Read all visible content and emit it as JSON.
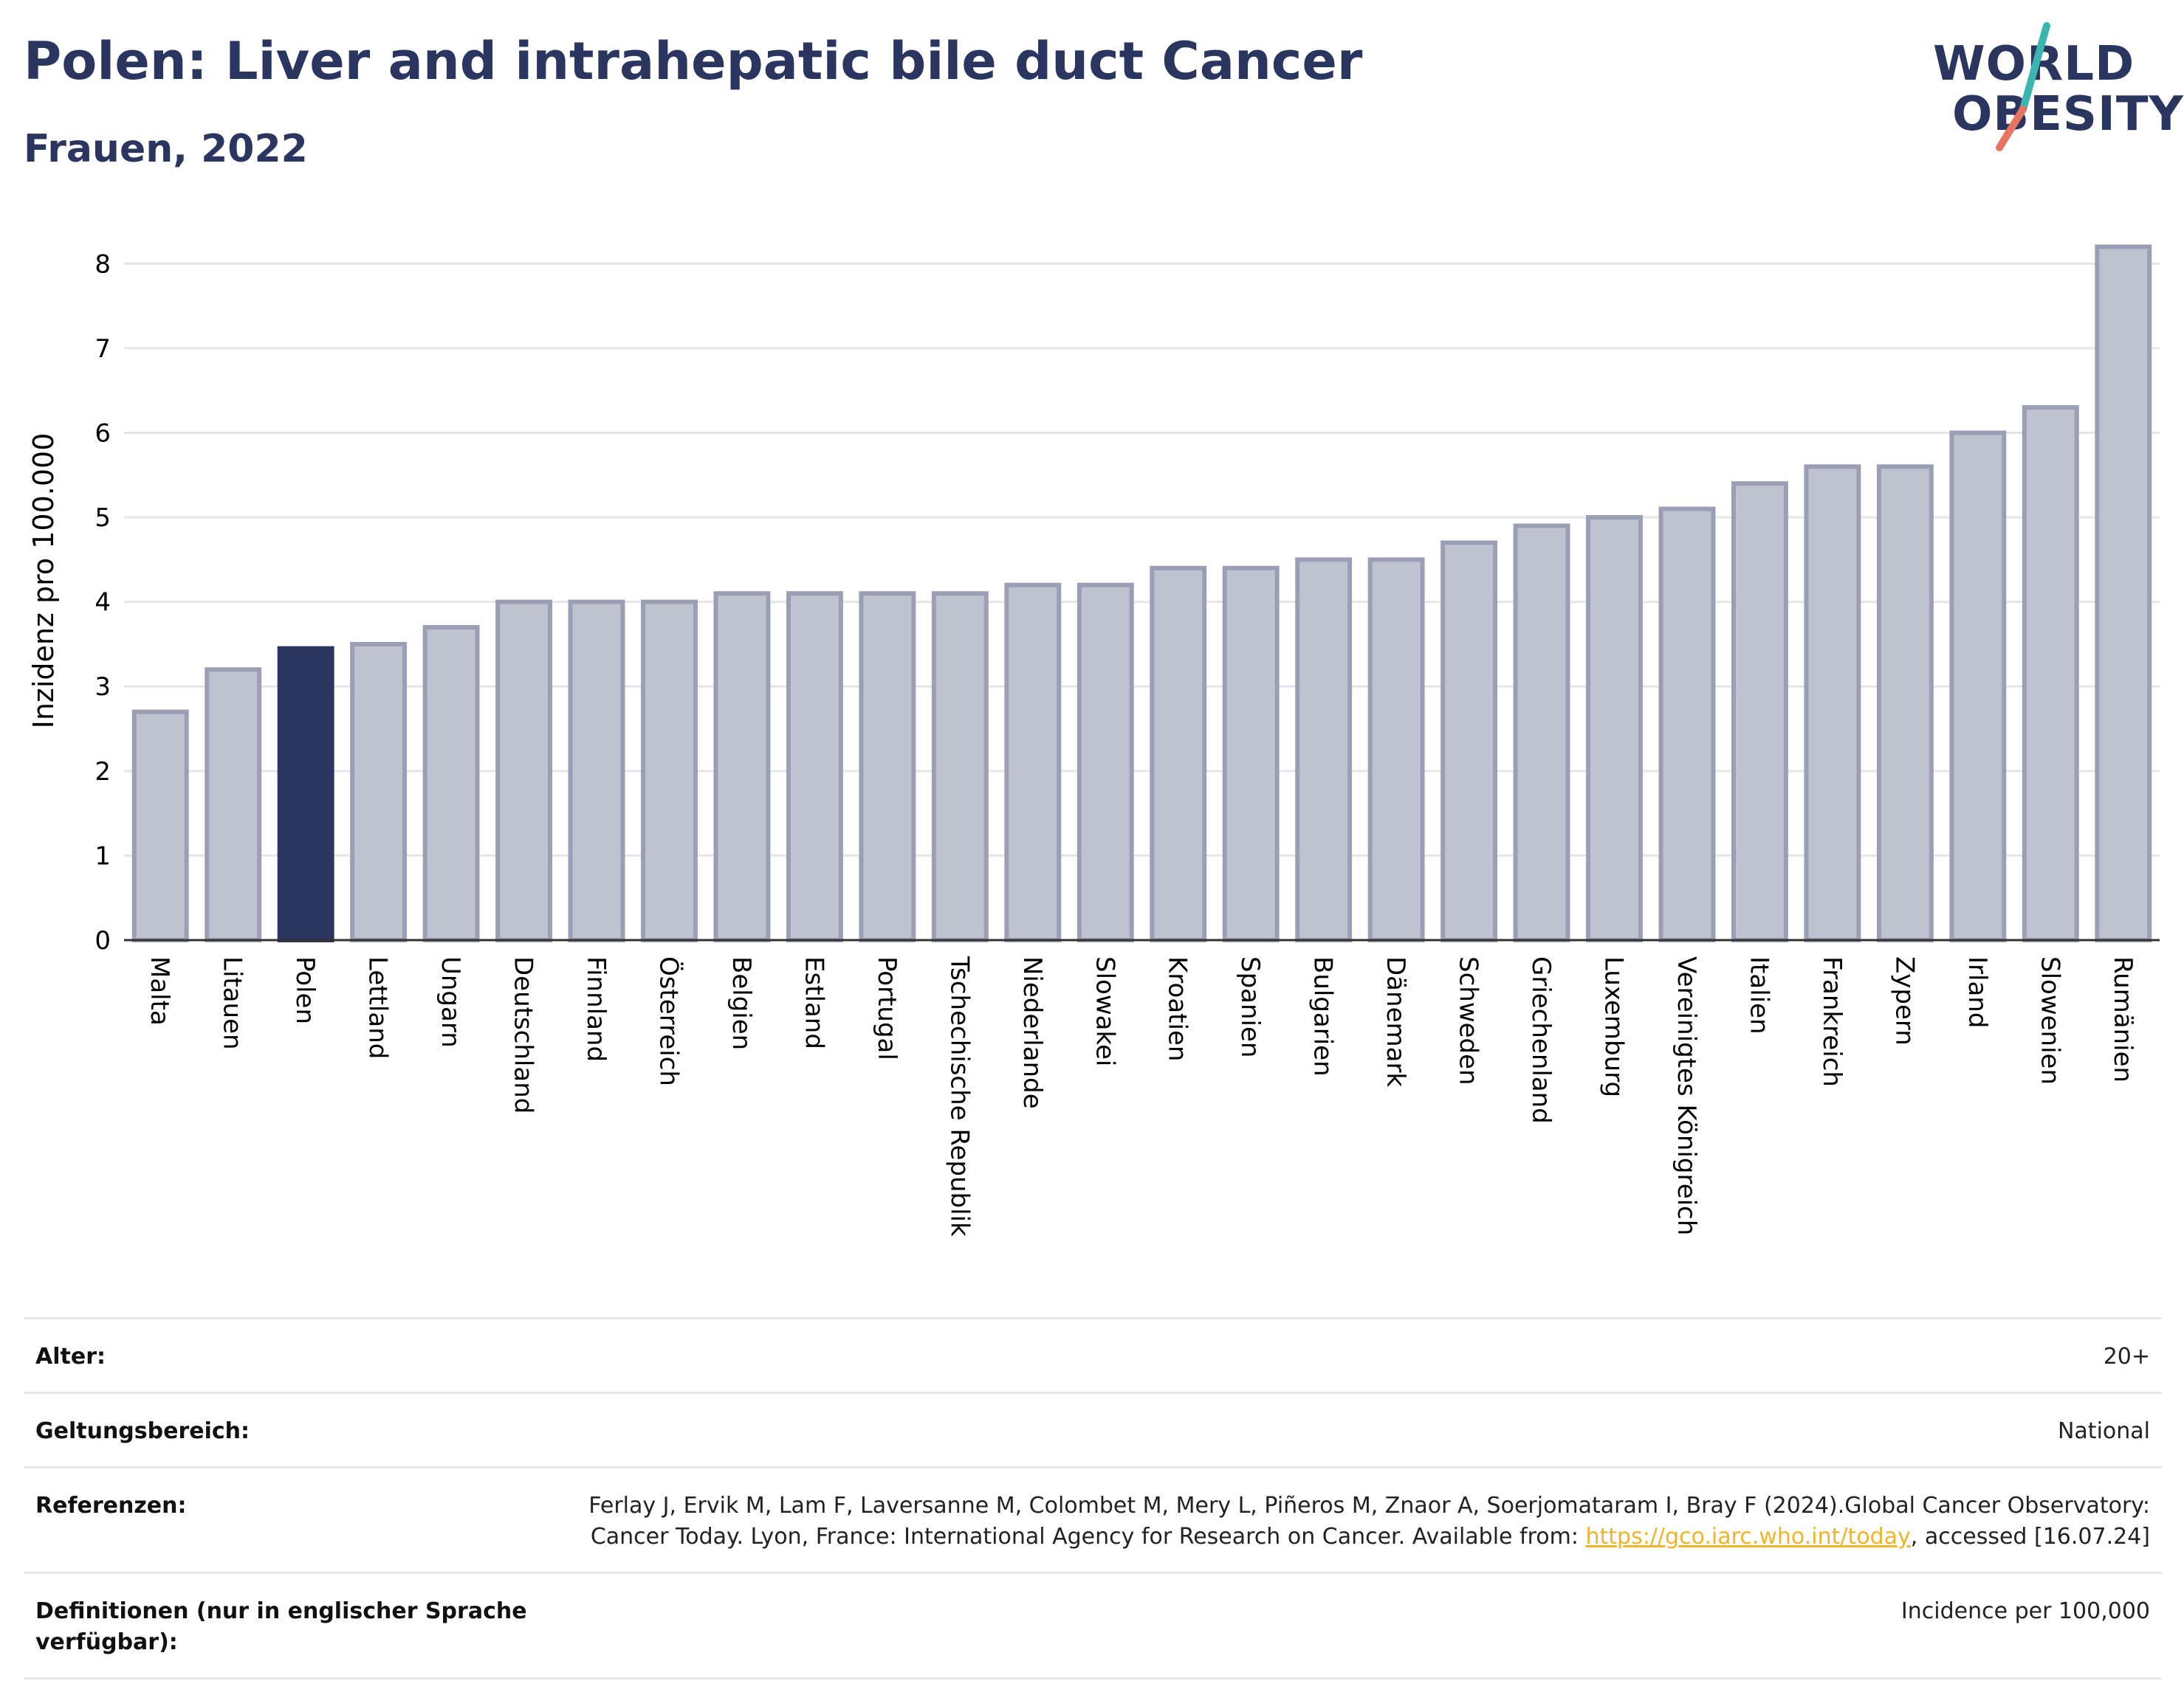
{
  "header": {
    "title": "Polen: Liver and intrahepatic bile duct Cancer",
    "subtitle": "Frauen, 2022"
  },
  "logo": {
    "line1": "WORLD",
    "line2": "OBESITY",
    "colors": {
      "text": "#2a3660",
      "slash_top": "#3ab5b0",
      "slash_bottom": "#e8735f"
    }
  },
  "colors": {
    "highlight": "#2a3660",
    "bar": "#bfc2cf",
    "bar_border": "#9a9fb5",
    "grid": "#e6e6ea",
    "axis": "#333333"
  },
  "chart_data": {
    "type": "bar",
    "title": "",
    "xlabel": "",
    "ylabel": "Inzidenz pro 100.000",
    "ylim": [
      0,
      8.5
    ],
    "yticks": [
      0,
      1,
      2,
      3,
      4,
      5,
      6,
      7,
      8
    ],
    "grid": true,
    "highlight": "Polen",
    "categories": [
      "Malta",
      "Litauen",
      "Polen",
      "Lettland",
      "Ungarn",
      "Deutschland",
      "Finnland",
      "Österreich",
      "Belgien",
      "Estland",
      "Portugal",
      "Tschechische Republik",
      "Niederlande",
      "Slowakei",
      "Kroatien",
      "Spanien",
      "Bulgarien",
      "Dänemark",
      "Schweden",
      "Griechenland",
      "Luxemburg",
      "Vereinigtes Königreich",
      "Italien",
      "Frankreich",
      "Zypern",
      "Irland",
      "Slowenien",
      "Rumänien"
    ],
    "values": [
      2.7,
      3.2,
      3.45,
      3.5,
      3.7,
      4.0,
      4.0,
      4.0,
      4.1,
      4.1,
      4.1,
      4.1,
      4.2,
      4.2,
      4.4,
      4.4,
      4.5,
      4.5,
      4.7,
      4.9,
      5.0,
      5.1,
      5.4,
      5.6,
      5.6,
      6.0,
      6.3,
      8.2
    ]
  },
  "meta": {
    "age_label": "Alter:",
    "age_value": "20+",
    "scope_label": "Geltungsbereich:",
    "scope_value": "National",
    "ref_label": "Referenzen:",
    "ref_text_1": "Ferlay J, Ervik M, Lam F, Laversanne M, Colombet M, Mery L, Piñeros M, Znaor A, Soerjomataram I, Bray F (2024).Global Cancer Observatory: Cancer Today. Lyon, France: International Agency for Research on Cancer. Available from: ",
    "ref_link": "https://gco.iarc.who.int/today",
    "ref_text_2": ", accessed [16.07.24]",
    "def_label": "Definitionen (nur in englischer Sprache verfügbar):",
    "def_value": "Incidence per 100,000"
  }
}
